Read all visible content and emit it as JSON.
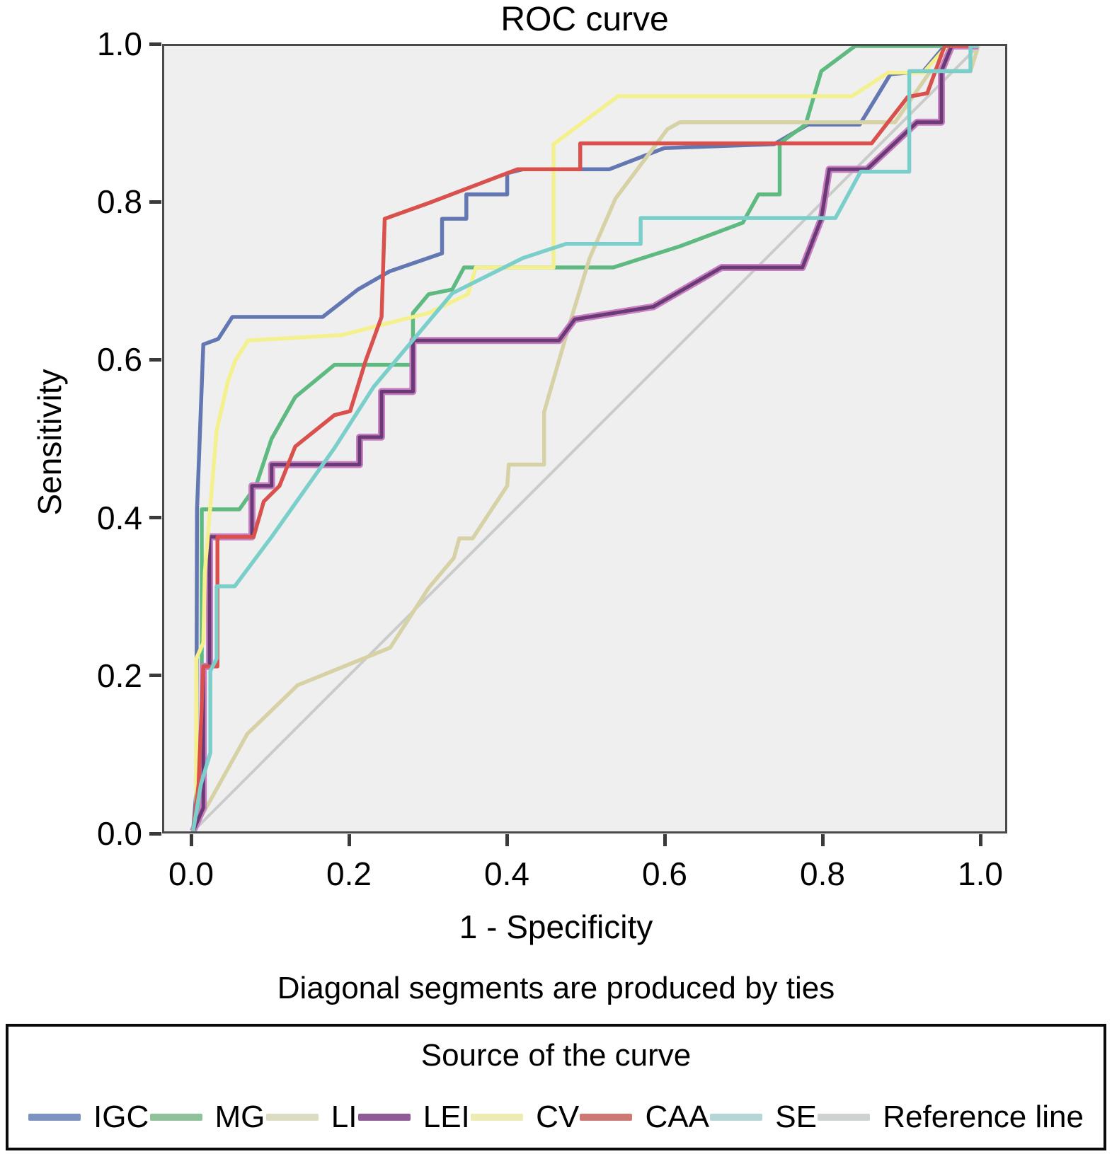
{
  "figure": {
    "title": "ROC curve",
    "x_axis_label": "1 - Specificity",
    "y_axis_label": "Sensitivity",
    "footnote": "Diagonal segments are produced by ties"
  },
  "legend": {
    "title": "Source of the curve"
  },
  "chart_data": {
    "type": "line",
    "title": "ROC curve",
    "xlabel": "1 - Specificity",
    "ylabel": "Sensitivity",
    "xlim": [
      0,
      1
    ],
    "ylim": [
      0,
      1
    ],
    "x_ticks": [
      "0.0",
      "0.2",
      "0.4",
      "0.6",
      "0.8",
      "1.0"
    ],
    "y_ticks": [
      "0.0",
      "0.2",
      "0.4",
      "0.6",
      "0.8",
      "1.0"
    ],
    "grid": false,
    "legend_position": "bottom",
    "plot_background": "#efefef",
    "axis_color": "#4a4a4a",
    "series": [
      {
        "name": "Reference line",
        "color": "#c9cccb",
        "swatch": "#ced2d0",
        "width": 4,
        "reference": true,
        "points": [
          [
            0,
            0
          ],
          [
            1,
            1
          ]
        ]
      },
      {
        "name": "IGC",
        "color": "#6377b2",
        "swatch": "#7e92c1",
        "width": 5.5,
        "points": [
          [
            0,
            0
          ],
          [
            0.004,
            0.05
          ],
          [
            0.005,
            0.41
          ],
          [
            0.013,
            0.62
          ],
          [
            0.032,
            0.627
          ],
          [
            0.05,
            0.655
          ],
          [
            0.165,
            0.655
          ],
          [
            0.21,
            0.69
          ],
          [
            0.25,
            0.713
          ],
          [
            0.317,
            0.736
          ],
          [
            0.317,
            0.78
          ],
          [
            0.348,
            0.78
          ],
          [
            0.348,
            0.811
          ],
          [
            0.4,
            0.811
          ],
          [
            0.4,
            0.838
          ],
          [
            0.42,
            0.843
          ],
          [
            0.53,
            0.843
          ],
          [
            0.6,
            0.87
          ],
          [
            0.74,
            0.875
          ],
          [
            0.783,
            0.9
          ],
          [
            0.849,
            0.9
          ],
          [
            0.888,
            0.964
          ],
          [
            0.93,
            0.968
          ],
          [
            0.957,
            1
          ],
          [
            1,
            1
          ]
        ]
      },
      {
        "name": "MG",
        "color": "#5eba81",
        "swatch": "#8fc29b",
        "width": 5.5,
        "points": [
          [
            0,
            0
          ],
          [
            0.011,
            0.05
          ],
          [
            0.011,
            0.41
          ],
          [
            0.059,
            0.41
          ],
          [
            0.08,
            0.44
          ],
          [
            0.1,
            0.5
          ],
          [
            0.13,
            0.553
          ],
          [
            0.18,
            0.594
          ],
          [
            0.28,
            0.594
          ],
          [
            0.28,
            0.66
          ],
          [
            0.3,
            0.684
          ],
          [
            0.33,
            0.69
          ],
          [
            0.345,
            0.718
          ],
          [
            0.535,
            0.718
          ],
          [
            0.62,
            0.745
          ],
          [
            0.7,
            0.775
          ],
          [
            0.72,
            0.811
          ],
          [
            0.747,
            0.811
          ],
          [
            0.747,
            0.876
          ],
          [
            0.78,
            0.9
          ],
          [
            0.8,
            0.968
          ],
          [
            0.843,
            1
          ],
          [
            1,
            1
          ]
        ]
      },
      {
        "name": "LI",
        "color": "#d6d2a6",
        "swatch": "#dcdcc2",
        "width": 5.5,
        "points": [
          [
            0,
            0
          ],
          [
            0.069,
            0.124
          ],
          [
            0.133,
            0.186
          ],
          [
            0.251,
            0.234
          ],
          [
            0.3,
            0.31
          ],
          [
            0.332,
            0.348
          ],
          [
            0.339,
            0.373
          ],
          [
            0.356,
            0.373
          ],
          [
            0.4,
            0.44
          ],
          [
            0.402,
            0.467
          ],
          [
            0.447,
            0.467
          ],
          [
            0.447,
            0.534
          ],
          [
            0.48,
            0.648
          ],
          [
            0.505,
            0.73
          ],
          [
            0.538,
            0.806
          ],
          [
            0.604,
            0.894
          ],
          [
            0.62,
            0.903
          ],
          [
            0.894,
            0.903
          ],
          [
            0.939,
            0.968
          ],
          [
            0.99,
            0.968
          ],
          [
            1,
            1
          ]
        ]
      },
      {
        "name": "LEI",
        "color": "#6a3a74",
        "swatch": "#8f5b96",
        "halo": "#c77ec2",
        "width": 5,
        "points": [
          [
            0,
            0
          ],
          [
            0.013,
            0.03
          ],
          [
            0.013,
            0.21
          ],
          [
            0.021,
            0.21
          ],
          [
            0.021,
            0.375
          ],
          [
            0.075,
            0.375
          ],
          [
            0.075,
            0.44
          ],
          [
            0.1,
            0.44
          ],
          [
            0.1,
            0.467
          ],
          [
            0.212,
            0.467
          ],
          [
            0.212,
            0.502
          ],
          [
            0.24,
            0.502
          ],
          [
            0.24,
            0.56
          ],
          [
            0.28,
            0.56
          ],
          [
            0.28,
            0.625
          ],
          [
            0.466,
            0.625
          ],
          [
            0.486,
            0.652
          ],
          [
            0.586,
            0.668
          ],
          [
            0.673,
            0.718
          ],
          [
            0.776,
            0.718
          ],
          [
            0.8,
            0.78
          ],
          [
            0.81,
            0.843
          ],
          [
            0.858,
            0.843
          ],
          [
            0.922,
            0.903
          ],
          [
            0.953,
            0.903
          ],
          [
            0.953,
            0.968
          ],
          [
            0.966,
            1
          ],
          [
            1,
            1
          ]
        ]
      },
      {
        "name": "CV",
        "color": "#f4f08d",
        "swatch": "#eeeab4",
        "width": 5.5,
        "points": [
          [
            0,
            0
          ],
          [
            0.004,
            0.03
          ],
          [
            0.004,
            0.22
          ],
          [
            0.013,
            0.24
          ],
          [
            0.015,
            0.33
          ],
          [
            0.03,
            0.51
          ],
          [
            0.044,
            0.572
          ],
          [
            0.054,
            0.6
          ],
          [
            0.07,
            0.625
          ],
          [
            0.19,
            0.632
          ],
          [
            0.24,
            0.645
          ],
          [
            0.3,
            0.66
          ],
          [
            0.35,
            0.684
          ],
          [
            0.36,
            0.718
          ],
          [
            0.459,
            0.718
          ],
          [
            0.459,
            0.875
          ],
          [
            0.541,
            0.936
          ],
          [
            0.839,
            0.936
          ],
          [
            0.885,
            0.966
          ],
          [
            0.93,
            0.966
          ],
          [
            0.96,
            1
          ],
          [
            1,
            1
          ]
        ]
      },
      {
        "name": "CAA",
        "color": "#d8514d",
        "swatch": "#cc7973",
        "width": 5.5,
        "points": [
          [
            0,
            0
          ],
          [
            0.007,
            0.06
          ],
          [
            0.013,
            0.21
          ],
          [
            0.031,
            0.21
          ],
          [
            0.031,
            0.375
          ],
          [
            0.077,
            0.375
          ],
          [
            0.09,
            0.42
          ],
          [
            0.11,
            0.44
          ],
          [
            0.13,
            0.49
          ],
          [
            0.18,
            0.53
          ],
          [
            0.2,
            0.535
          ],
          [
            0.22,
            0.6
          ],
          [
            0.24,
            0.655
          ],
          [
            0.244,
            0.78
          ],
          [
            0.3,
            0.8
          ],
          [
            0.413,
            0.843
          ],
          [
            0.493,
            0.843
          ],
          [
            0.493,
            0.876
          ],
          [
            0.864,
            0.876
          ],
          [
            0.885,
            0.903
          ],
          [
            0.91,
            0.935
          ],
          [
            0.935,
            0.94
          ],
          [
            0.957,
            1
          ],
          [
            1,
            1
          ]
        ]
      },
      {
        "name": "SE",
        "color": "#7acfca",
        "swatch": "#b5d6d5",
        "width": 5.5,
        "points": [
          [
            0,
            0
          ],
          [
            0.01,
            0.06
          ],
          [
            0.022,
            0.1
          ],
          [
            0.022,
            0.204
          ],
          [
            0.03,
            0.22
          ],
          [
            0.03,
            0.312
          ],
          [
            0.053,
            0.312
          ],
          [
            0.1,
            0.375
          ],
          [
            0.18,
            0.488
          ],
          [
            0.23,
            0.566
          ],
          [
            0.33,
            0.685
          ],
          [
            0.42,
            0.73
          ],
          [
            0.475,
            0.748
          ],
          [
            0.57,
            0.748
          ],
          [
            0.57,
            0.781
          ],
          [
            0.818,
            0.781
          ],
          [
            0.85,
            0.84
          ],
          [
            0.912,
            0.84
          ],
          [
            0.912,
            0.968
          ],
          [
            0.99,
            0.968
          ],
          [
            0.99,
            1
          ],
          [
            1,
            1
          ]
        ]
      }
    ],
    "legend_order": [
      "IGC",
      "MG",
      "LI",
      "LEI",
      "CV",
      "CAA",
      "SE",
      "Reference line"
    ]
  }
}
